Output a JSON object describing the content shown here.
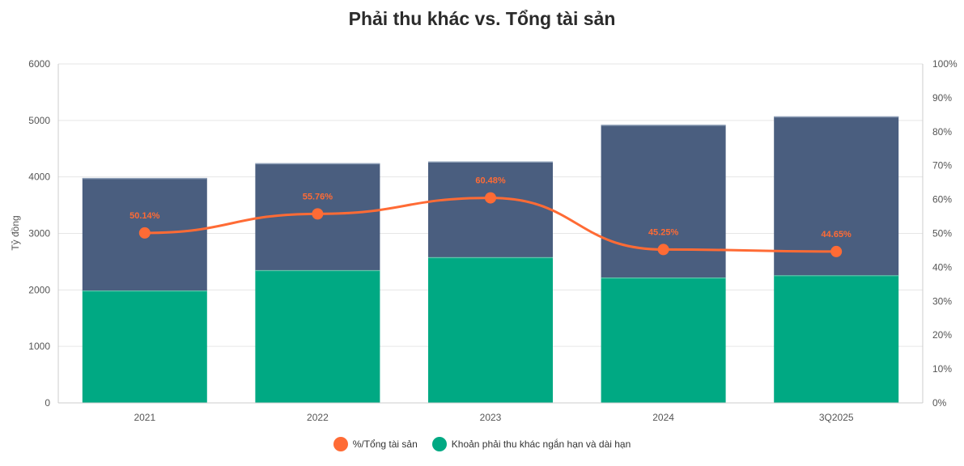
{
  "chart_data": {
    "type": "bar",
    "title": "Phải thu khác vs. Tổng tài sản",
    "ylabel": "Tỷ đồng",
    "categories": [
      "2021",
      "2022",
      "2023",
      "2024",
      "3Q2025"
    ],
    "ylim": [
      0,
      6000
    ],
    "yticks": [
      "0",
      "1000",
      "2000",
      "3000",
      "4000",
      "5000",
      "6000"
    ],
    "y2lim": [
      0,
      100
    ],
    "y2ticks": [
      "0%",
      "10%",
      "20%",
      "30%",
      "40%",
      "50%",
      "60%",
      "70%",
      "80%",
      "90%",
      "100%"
    ],
    "stacked": true,
    "grid": true,
    "legend_position": "bottom",
    "series": [
      {
        "name": "Khoản phải thu khác ngắn hạn và dài hạn",
        "type": "bar",
        "axis": "left",
        "color": "#00a983",
        "values": [
          1990,
          2350,
          2580,
          2220,
          2260
        ]
      },
      {
        "type": "bar",
        "axis": "left",
        "color": "#4a5e7f",
        "values": [
          1990,
          1890,
          1690,
          2700,
          2810
        ]
      },
      {
        "name": "%/Tổng tài sản",
        "type": "line",
        "axis": "right",
        "color": "#ff6b35",
        "values": [
          50.14,
          55.76,
          60.48,
          45.25,
          44.65
        ],
        "labels": [
          "50.14%",
          "55.76%",
          "60.48%",
          "45.25%",
          "44.65%"
        ]
      }
    ]
  },
  "legend": {
    "items": [
      {
        "label": "%/Tổng tài sản",
        "color": "#ff6b35"
      },
      {
        "label": "Khoản phải thu khác ngắn hạn và dài hạn",
        "color": "#00a983"
      }
    ]
  }
}
